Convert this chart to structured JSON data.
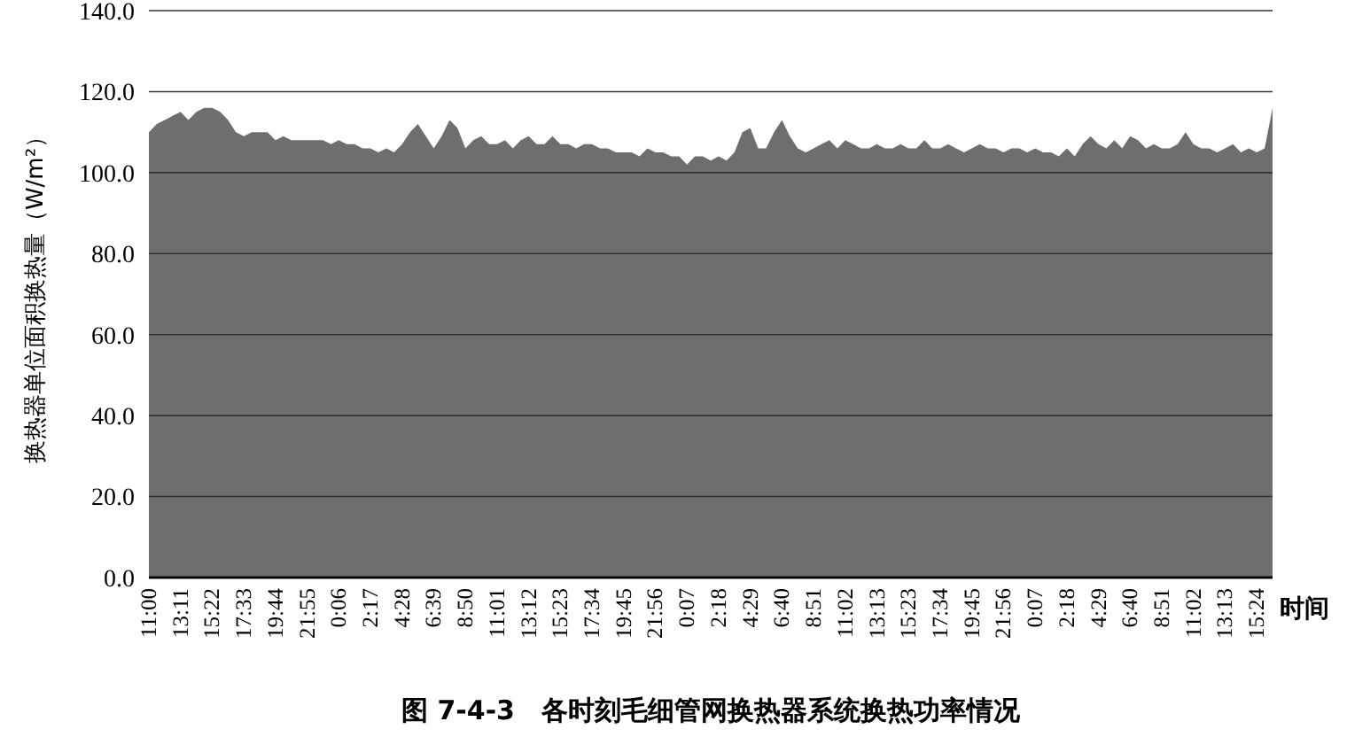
{
  "chart_data": {
    "type": "area",
    "title": "图 7-4-3　各时刻毛细管网换热器系统换热功率情况",
    "xlabel": "时间",
    "ylabel": "换热器单位面积换热量（W/m²）",
    "categories": [
      "11:00",
      null,
      null,
      null,
      "13:11",
      null,
      null,
      null,
      "15:22",
      null,
      null,
      null,
      "17:33",
      null,
      null,
      null,
      "19:44",
      null,
      null,
      null,
      "21:55",
      null,
      null,
      null,
      "0:06",
      null,
      null,
      null,
      "2:17",
      null,
      null,
      null,
      "4:28",
      null,
      null,
      null,
      "6:39",
      null,
      null,
      null,
      "8:50",
      null,
      null,
      null,
      "11:01",
      null,
      null,
      null,
      "13:12",
      null,
      null,
      null,
      "15:23",
      null,
      null,
      null,
      "17:34",
      null,
      null,
      null,
      "19:45",
      null,
      null,
      null,
      "21:56",
      null,
      null,
      null,
      "0:07",
      null,
      null,
      null,
      "2:18",
      null,
      null,
      null,
      "4:29",
      null,
      null,
      null,
      "6:40",
      null,
      null,
      null,
      "8:51",
      null,
      null,
      null,
      "11:02",
      null,
      null,
      null,
      "13:13",
      null,
      null,
      null,
      "15:23",
      null,
      null,
      null,
      "17:34",
      null,
      null,
      null,
      "19:45",
      null,
      null,
      null,
      "21:56",
      null,
      null,
      null,
      "0:07",
      null,
      null,
      null,
      "2:18",
      null,
      null,
      null,
      "4:29",
      null,
      null,
      null,
      "6:40",
      null,
      null,
      null,
      "8:51",
      null,
      null,
      null,
      "11:02",
      null,
      null,
      null,
      "13:13",
      null,
      null,
      null,
      "15:24",
      null,
      null
    ],
    "series": [
      {
        "color": "#6d6e70",
        "values": [
          110,
          112,
          113,
          114,
          115,
          113,
          115,
          116,
          116,
          115,
          113,
          110,
          109,
          110,
          110,
          110,
          108,
          109,
          108,
          108,
          108,
          108,
          108,
          107,
          108,
          107,
          107,
          106,
          106,
          105,
          106,
          105,
          107,
          110,
          112,
          109,
          106,
          109,
          113,
          111,
          106,
          108,
          109,
          107,
          107,
          108,
          106,
          108,
          109,
          107,
          107,
          109,
          107,
          107,
          106,
          107,
          107,
          106,
          106,
          105,
          105,
          105,
          104,
          106,
          105,
          105,
          104,
          104,
          102,
          104,
          104,
          103,
          104,
          103,
          105,
          110,
          111,
          106,
          106,
          110,
          113,
          109,
          106,
          105,
          106,
          107,
          108,
          106,
          108,
          107,
          106,
          106,
          107,
          106,
          106,
          107,
          106,
          106,
          108,
          106,
          106,
          107,
          106,
          105,
          106,
          107,
          106,
          106,
          105,
          106,
          106,
          105,
          106,
          105,
          105,
          104,
          106,
          104,
          107,
          109,
          107,
          106,
          108,
          106,
          109,
          108,
          106,
          107,
          106,
          106,
          107,
          110,
          107,
          106,
          106,
          105,
          106,
          107,
          105,
          106,
          105,
          106,
          116
        ]
      }
    ],
    "ylim": [
      0,
      140
    ],
    "yticks": [
      {
        "value": 0,
        "label": "0.0"
      },
      {
        "value": 20,
        "label": "20.0"
      },
      {
        "value": 40,
        "label": "40.0"
      },
      {
        "value": 60,
        "label": "60.0"
      },
      {
        "value": 80,
        "label": "80.0"
      },
      {
        "value": 100,
        "label": "100.0"
      },
      {
        "value": 120,
        "label": "120.0"
      },
      {
        "value": 140,
        "label": "140.0"
      }
    ],
    "grid": "y"
  }
}
